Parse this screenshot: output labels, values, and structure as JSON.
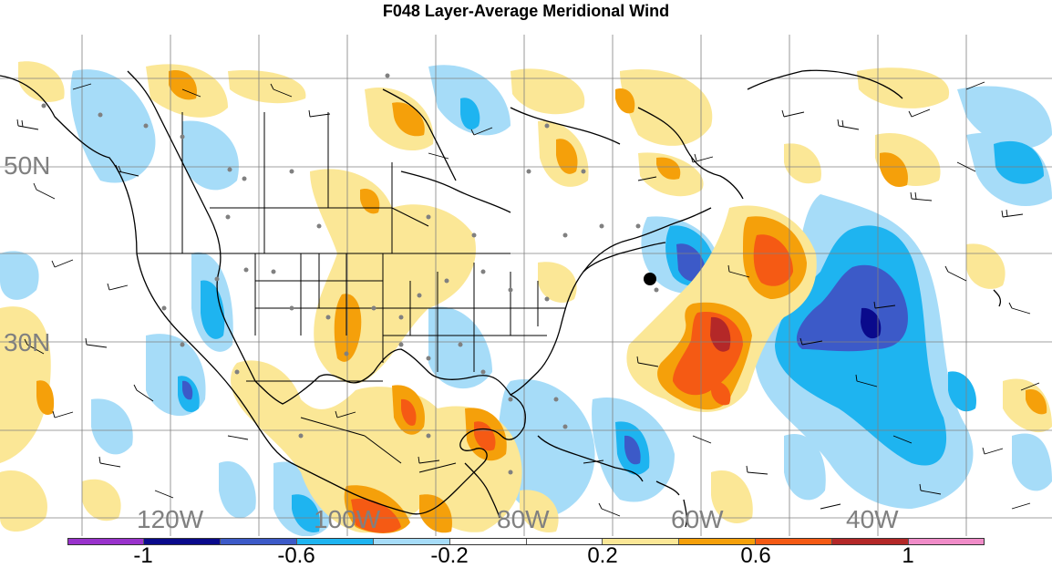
{
  "title": "F048 Layer-Average Meridional Wind",
  "map": {
    "longitude_labels": [
      "120W",
      "100W",
      "80W",
      "60W",
      "40W"
    ],
    "latitude_labels": [
      "50N",
      "30N"
    ],
    "label_color": "#808080",
    "marker": {
      "name": "storm-position-marker",
      "color": "#000000"
    }
  },
  "colorbar": {
    "colors": [
      "#9932cc",
      "#0a0a8c",
      "#3c5ac8",
      "#1eb4f0",
      "#a6dcf8",
      "#ffffff",
      "#ffffff",
      "#fbe796",
      "#f5a00a",
      "#f55a14",
      "#b42828",
      "#f08cc8"
    ],
    "labels": [
      "-1",
      "-0.6",
      "-0.2",
      "0.2",
      "0.6",
      "1"
    ]
  }
}
